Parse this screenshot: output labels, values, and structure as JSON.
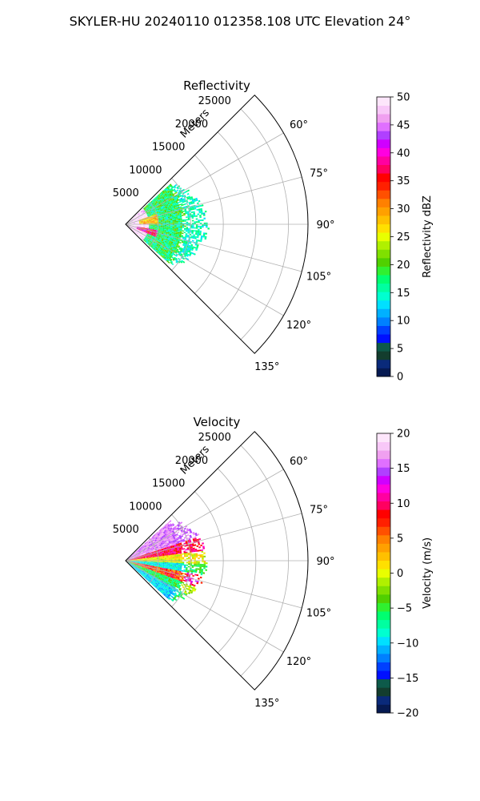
{
  "suptitle": "SKYLER-HU  20240110  012358.108 UTC Elevation 24°",
  "chart_data": [
    {
      "type": "heatmap",
      "projection": "polar sector (PPI)",
      "title": "Reflectivity",
      "range_label": "Meters",
      "range_ticks": [
        "5000",
        "10000",
        "15000",
        "20000",
        "25000"
      ],
      "range_limit": 28000,
      "azimuth_ticks": [
        "60°",
        "75°",
        "90°",
        "105°",
        "120°",
        "135°"
      ],
      "azimuth_range_deg": [
        45,
        135
      ],
      "data_extent_m": 12000,
      "grid": true,
      "colorbar": {
        "label": "Reflectivity dBZ",
        "min": 0,
        "max": 50,
        "ticks": [
          "0",
          "5",
          "10",
          "15",
          "20",
          "25",
          "30",
          "35",
          "40",
          "45",
          "50"
        ],
        "colors": [
          "#061a52",
          "#0a2a7a",
          "#133d2e",
          "#0d5a4a",
          "#0010ff",
          "#0040ff",
          "#0080ff",
          "#00b0ff",
          "#00e0ff",
          "#00ffd0",
          "#00ffa0",
          "#00ff70",
          "#30f030",
          "#50d000",
          "#80e000",
          "#b0f000",
          "#e8ff00",
          "#ffe000",
          "#ffc000",
          "#ffa000",
          "#ff8000",
          "#ff5000",
          "#ff2000",
          "#ff0000",
          "#ff0060",
          "#ff00a0",
          "#ff00e0",
          "#d000ff",
          "#b040ff",
          "#e070ff",
          "#f0a0f0",
          "#f8c8f8",
          "#fde6fb"
        ]
      }
    },
    {
      "type": "heatmap",
      "projection": "polar sector (PPI)",
      "title": "Velocity",
      "range_label": "Meters",
      "range_ticks": [
        "5000",
        "10000",
        "15000",
        "20000",
        "25000"
      ],
      "range_limit": 28000,
      "azimuth_ticks": [
        "60°",
        "75°",
        "90°",
        "105°",
        "120°",
        "135°"
      ],
      "azimuth_range_deg": [
        45,
        135
      ],
      "data_extent_m": 12000,
      "grid": true,
      "colorbar": {
        "label": "Velocity (m/s)",
        "min": -20,
        "max": 20,
        "ticks": [
          "−20",
          "−15",
          "−10",
          "−5",
          "0",
          "5",
          "10",
          "15",
          "20"
        ],
        "colors": [
          "#061a52",
          "#0a2a7a",
          "#133d2e",
          "#0d5a4a",
          "#0010ff",
          "#0040ff",
          "#0080ff",
          "#00b0ff",
          "#00e0ff",
          "#00ffd0",
          "#00ffa0",
          "#00ff70",
          "#30f030",
          "#50d000",
          "#80e000",
          "#b0f000",
          "#e8ff00",
          "#ffe000",
          "#ffc000",
          "#ffa000",
          "#ff8000",
          "#ff5000",
          "#ff2000",
          "#ff0000",
          "#ff0060",
          "#ff00a0",
          "#ff00e0",
          "#d000ff",
          "#b040ff",
          "#e070ff",
          "#f0a0f0",
          "#f8c8f8",
          "#fde6fb"
        ]
      }
    }
  ]
}
